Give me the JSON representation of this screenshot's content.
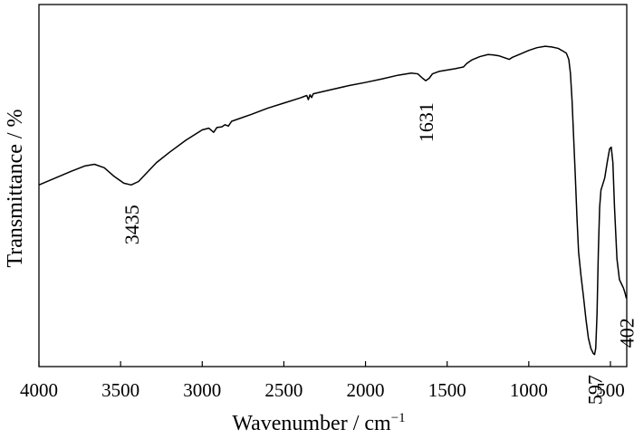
{
  "chart_data": {
    "type": "line",
    "title": "",
    "xlabel": "Wavenumber / cm",
    "xlabel_superscript": "−1",
    "ylabel": "Transmittance / %",
    "xlim": [
      4000,
      400
    ],
    "x_reversed": true,
    "yaxis_ticks_shown": false,
    "grid": false,
    "legend": "none",
    "line_color": "#000000",
    "x_ticks": [
      4000,
      3500,
      3000,
      2500,
      2000,
      1500,
      1000,
      500
    ],
    "x_tick_labels": [
      "4000",
      "3500",
      "3000",
      "2500",
      "2000",
      "1500",
      "1000",
      "500"
    ],
    "annotations": [
      {
        "text": "3435",
        "x": 3435
      },
      {
        "text": "1631",
        "x": 1631
      },
      {
        "text": "597",
        "x": 597
      },
      {
        "text": "402",
        "x": 402
      }
    ],
    "ylim": [
      0,
      100
    ],
    "series": [
      {
        "points": [
          [
            4000,
            51.5
          ],
          [
            3900,
            53.5
          ],
          [
            3800,
            55.5
          ],
          [
            3720,
            57.0
          ],
          [
            3660,
            57.5
          ],
          [
            3600,
            56.5
          ],
          [
            3540,
            54.0
          ],
          [
            3480,
            52.0
          ],
          [
            3435,
            51.5
          ],
          [
            3390,
            52.5
          ],
          [
            3340,
            55.0
          ],
          [
            3280,
            58.0
          ],
          [
            3200,
            61.0
          ],
          [
            3100,
            64.5
          ],
          [
            3000,
            67.5
          ],
          [
            2960,
            68.0
          ],
          [
            2930,
            66.8
          ],
          [
            2910,
            68.2
          ],
          [
            2880,
            68.4
          ],
          [
            2860,
            69.0
          ],
          [
            2840,
            68.6
          ],
          [
            2820,
            70.0
          ],
          [
            2700,
            72.0
          ],
          [
            2600,
            73.8
          ],
          [
            2500,
            75.3
          ],
          [
            2400,
            76.8
          ],
          [
            2360,
            77.5
          ],
          [
            2350,
            76.3
          ],
          [
            2340,
            77.7
          ],
          [
            2330,
            76.9
          ],
          [
            2320,
            78.0
          ],
          [
            2200,
            79.3
          ],
          [
            2100,
            80.4
          ],
          [
            2000,
            81.3
          ],
          [
            1900,
            82.3
          ],
          [
            1800,
            83.4
          ],
          [
            1720,
            84.0
          ],
          [
            1680,
            83.8
          ],
          [
            1650,
            82.5
          ],
          [
            1631,
            81.8
          ],
          [
            1610,
            82.5
          ],
          [
            1590,
            83.8
          ],
          [
            1550,
            84.5
          ],
          [
            1500,
            84.9
          ],
          [
            1450,
            85.3
          ],
          [
            1400,
            85.8
          ],
          [
            1380,
            86.8
          ],
          [
            1350,
            87.8
          ],
          [
            1300,
            88.8
          ],
          [
            1250,
            89.4
          ],
          [
            1220,
            89.3
          ],
          [
            1180,
            89.0
          ],
          [
            1150,
            88.5
          ],
          [
            1120,
            88.0
          ],
          [
            1100,
            88.6
          ],
          [
            1050,
            89.6
          ],
          [
            1000,
            90.6
          ],
          [
            950,
            91.4
          ],
          [
            900,
            91.8
          ],
          [
            860,
            91.6
          ],
          [
            820,
            91.2
          ],
          [
            790,
            90.4
          ],
          [
            770,
            89.8
          ],
          [
            755,
            88.0
          ],
          [
            745,
            84.0
          ],
          [
            735,
            76.0
          ],
          [
            725,
            65.0
          ],
          [
            715,
            54.0
          ],
          [
            705,
            42.0
          ],
          [
            695,
            32.0
          ],
          [
            680,
            25.0
          ],
          [
            665,
            19.0
          ],
          [
            650,
            12.5
          ],
          [
            635,
            7.0
          ],
          [
            620,
            4.0
          ],
          [
            605,
            2.5
          ],
          [
            597,
            2.2
          ],
          [
            590,
            4.0
          ],
          [
            582,
            14.0
          ],
          [
            574,
            32.0
          ],
          [
            566,
            45.0
          ],
          [
            558,
            50.0
          ],
          [
            548,
            51.5
          ],
          [
            535,
            53.5
          ],
          [
            520,
            58.0
          ],
          [
            505,
            62.0
          ],
          [
            495,
            62.5
          ],
          [
            485,
            58.0
          ],
          [
            475,
            45.0
          ],
          [
            460,
            30.0
          ],
          [
            445,
            24.0
          ],
          [
            430,
            22.5
          ],
          [
            420,
            21.5
          ],
          [
            410,
            20.0
          ],
          [
            405,
            19.0
          ],
          [
            402,
            18.5
          ]
        ]
      }
    ]
  }
}
